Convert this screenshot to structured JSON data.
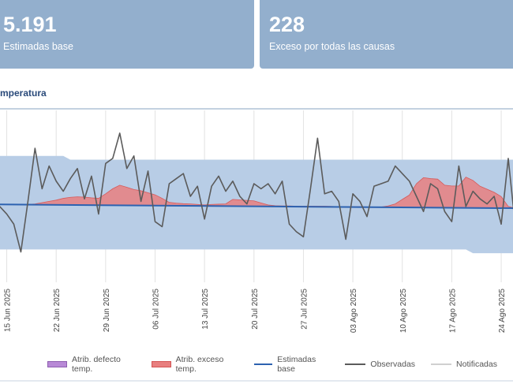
{
  "cards": [
    {
      "value": "5.191",
      "label": "Estimadas base"
    },
    {
      "value": "228",
      "label": "Exceso por todas las causas"
    }
  ],
  "section": {
    "title": "mperatura"
  },
  "legend": [
    {
      "label": "Atrib. defecto temp.",
      "color": "#b889d6"
    },
    {
      "label": "Atrib. exceso temp.",
      "color": "#e87f7f"
    },
    {
      "label": "Estimadas base",
      "color": "#2d62b0"
    },
    {
      "label": "Observadas",
      "color": "#5b5b5b"
    },
    {
      "label": "Notificadas",
      "color": "#d0d0d0"
    }
  ],
  "colors": {
    "band": "#b8cde6",
    "baseline": "#2d62b0",
    "observed": "#5b5b5b",
    "excess": "#e87f7f",
    "grid": "#e2e2e2"
  },
  "chart_data": {
    "type": "line",
    "x_start": "2025-06-14",
    "xlim": [
      "2025-06-14",
      "2025-08-27"
    ],
    "tick_labels": [
      "15 Jun 2025",
      "22 Jun 2025",
      "29 Jun 2025",
      "06 Jul 2025",
      "13 Jul 2025",
      "20 Jul 2025",
      "27 Jul 2025",
      "03 Ago 2025",
      "10 Ago 2025",
      "17 Ago 2025",
      "24 Ago 2025"
    ],
    "tick_days": [
      1,
      8,
      15,
      22,
      29,
      36,
      43,
      50,
      57,
      64,
      71
    ],
    "ylim": [
      44,
      112
    ],
    "band_upper": [
      [
        0,
        94
      ],
      [
        9,
        94
      ],
      [
        10,
        92.5
      ],
      [
        73,
        92.5
      ]
    ],
    "band_lower": [
      [
        0,
        57
      ],
      [
        66,
        57
      ],
      [
        67,
        55.5
      ],
      [
        73,
        55.5
      ]
    ],
    "baseline": [
      [
        0,
        74.8
      ],
      [
        73,
        73.3
      ]
    ],
    "observed": [
      74,
      71,
      67,
      56,
      76,
      97,
      81,
      90,
      84,
      80,
      85,
      89,
      77,
      86,
      71,
      91,
      93,
      103,
      89,
      94,
      76,
      88,
      68,
      66,
      83,
      85,
      87,
      78,
      82,
      69,
      82,
      86,
      80,
      84,
      78,
      75,
      83,
      81,
      83,
      79,
      84,
      67,
      64,
      62,
      81,
      101,
      79,
      80,
      76,
      61,
      79,
      76,
      70,
      82,
      83,
      84,
      90,
      87,
      84,
      78,
      72,
      83,
      81,
      72,
      68,
      90,
      74,
      80,
      77,
      75,
      78,
      67,
      93,
      66
    ],
    "excess_top": [
      74.8,
      74.8,
      74.8,
      74.8,
      74.8,
      75,
      75.5,
      76,
      76.5,
      77.2,
      77.6,
      77.8,
      77.7,
      77.4,
      77.2,
      79,
      81,
      82.4,
      81.6,
      80.7,
      80.2,
      79.4,
      78.6,
      77.2,
      75.6,
      75.3,
      75.1,
      75,
      74.8,
      74.6,
      74.8,
      74.9,
      75,
      76.8,
      76.6,
      76.4,
      76.2,
      75.4,
      74.6,
      74.3,
      74.2,
      74.2,
      74.1,
      74.1,
      74.1,
      74.1,
      74.1,
      74.0,
      73.9,
      73.9,
      73.9,
      73.9,
      73.8,
      73.8,
      73.8,
      74.2,
      75,
      76.8,
      78.5,
      83,
      85.4,
      85,
      84.8,
      82.4,
      82.1,
      82.1,
      85.6,
      84.3,
      82,
      80.8,
      79.6,
      77.9,
      74,
      73.3
    ]
  }
}
